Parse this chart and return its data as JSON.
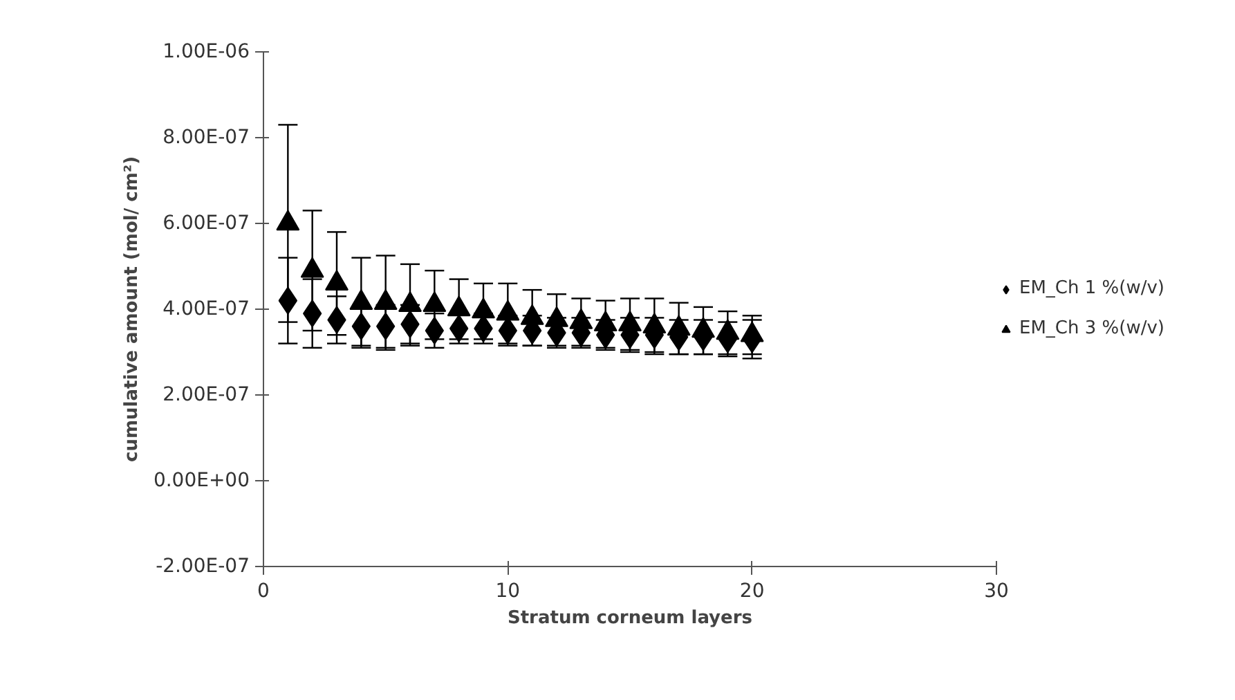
{
  "chart_data": {
    "type": "scatter",
    "xlabel": "Stratum corneum layers",
    "ylabel": "cumulative amount (mol/ cm²)",
    "x": [
      1,
      2,
      3,
      4,
      5,
      6,
      7,
      8,
      9,
      10,
      11,
      12,
      13,
      14,
      15,
      16,
      17,
      18,
      19,
      20
    ],
    "xlim": [
      0,
      30
    ],
    "xticks": [
      0,
      10,
      20,
      30
    ],
    "ylim": [
      -2e-07,
      1e-06
    ],
    "yticks": [
      {
        "value": -2e-07,
        "label": "-2.00E-07"
      },
      {
        "value": 0,
        "label": "0.00E+00"
      },
      {
        "value": 2e-07,
        "label": "2.00E-07"
      },
      {
        "value": 4e-07,
        "label": "4.00E-07"
      },
      {
        "value": 6e-07,
        "label": "6.00E-07"
      },
      {
        "value": 8e-07,
        "label": "8.00E-07"
      },
      {
        "value": 1e-06,
        "label": "1.00E-06"
      }
    ],
    "grid": false,
    "legend": "right",
    "series": [
      {
        "name": "EM_Ch 1 %(w/v)",
        "color": "#000000",
        "marker": "diamond",
        "values": [
          4.2e-07,
          3.9e-07,
          3.75e-07,
          3.6e-07,
          3.6e-07,
          3.65e-07,
          3.5e-07,
          3.55e-07,
          3.55e-07,
          3.5e-07,
          3.5e-07,
          3.45e-07,
          3.45e-07,
          3.4e-07,
          3.4e-07,
          3.4e-07,
          3.35e-07,
          3.35e-07,
          3.3e-07,
          3.3e-07
        ],
        "errors": [
          1e-07,
          8e-08,
          5.5e-08,
          4.5e-08,
          5e-08,
          4.5e-08,
          4e-08,
          3.5e-08,
          3.5e-08,
          3.5e-08,
          3.5e-08,
          3.5e-08,
          3.5e-08,
          3.5e-08,
          4e-08,
          4e-08,
          4e-08,
          4e-08,
          4e-08,
          4.5e-08
        ]
      },
      {
        "name": "EM_Ch 3 %(w/v)",
        "color": "#000000",
        "marker": "triangle",
        "values": [
          6e-07,
          4.9e-07,
          4.6e-07,
          4.15e-07,
          4.15e-07,
          4.1e-07,
          4.1e-07,
          4e-07,
          3.95e-07,
          3.9e-07,
          3.8e-07,
          3.75e-07,
          3.7e-07,
          3.65e-07,
          3.65e-07,
          3.6e-07,
          3.55e-07,
          3.5e-07,
          3.45e-07,
          3.4e-07
        ],
        "errors": [
          2.3e-07,
          1.4e-07,
          1.2e-07,
          1.05e-07,
          1.1e-07,
          9.5e-08,
          8e-08,
          7e-08,
          6.5e-08,
          7e-08,
          6.5e-08,
          6e-08,
          5.5e-08,
          5.5e-08,
          6e-08,
          6.5e-08,
          6e-08,
          5.5e-08,
          5e-08,
          4.5e-08
        ]
      }
    ]
  }
}
